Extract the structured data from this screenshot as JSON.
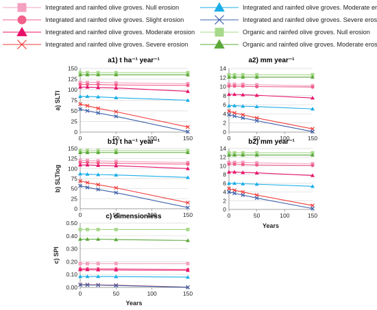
{
  "legend": [
    {
      "key": "int_null",
      "label": "Integrated and rainfed olive groves. Null erosion",
      "color": "#f4a0c0",
      "marker": "square"
    },
    {
      "key": "int_mod",
      "label": "Integrated and rainfed olive groves. Moderate erosion",
      "color": "#19aee8",
      "marker": "triangle"
    },
    {
      "key": "int_slight",
      "label": "Integrated and rainfed olive groves. Slight erosion",
      "color": "#f0608a",
      "marker": "circle"
    },
    {
      "key": "int_sev_blue",
      "label": "Integrated and rainfed olive groves. Severe erosion",
      "color": "#3a5fa8",
      "marker": "x"
    },
    {
      "key": "int_moderate",
      "label": "Integrated and rainfed olive groves. Moderate erosion",
      "color": "#e8106a",
      "marker": "triangle"
    },
    {
      "key": "org_null",
      "label": "Organic and rainfed olive groves. Null erosion",
      "color": "#a6d98a",
      "marker": "square"
    },
    {
      "key": "int_severe",
      "label": "Integrated and rainfed olive groves. Severe erosion",
      "color": "#f03a3a",
      "marker": "x"
    },
    {
      "key": "org_mod",
      "label": "Organic and rainfed olive groves. Moderate erosion",
      "color": "#5aa838",
      "marker": "triangle"
    }
  ],
  "chart_data": [
    {
      "id": "a1",
      "type": "line",
      "title": "a1) t ha⁻¹ year⁻¹",
      "xlabel": "",
      "ylabel": "a) SLTI",
      "x": [
        0,
        10,
        25,
        50,
        150
      ],
      "xticks": [
        0,
        50,
        100,
        150
      ],
      "xlim": [
        0,
        150
      ],
      "ylim": [
        0,
        150
      ],
      "yticks": [
        0,
        25,
        50,
        75,
        100,
        125,
        150
      ],
      "ydecimals": 0,
      "series": [
        {
          "key": "org_null",
          "values": [
            140,
            140,
            140,
            140,
            140
          ]
        },
        {
          "key": "org_mod",
          "values": [
            135,
            135,
            135,
            135,
            135
          ]
        },
        {
          "key": "int_null",
          "values": [
            117,
            117,
            117,
            116,
            114
          ]
        },
        {
          "key": "int_slight",
          "values": [
            112,
            112,
            112,
            111,
            110
          ]
        },
        {
          "key": "int_moderate",
          "values": [
            106,
            106,
            105,
            104,
            96
          ]
        },
        {
          "key": "int_mod",
          "values": [
            84,
            84,
            83,
            81,
            75
          ]
        },
        {
          "key": "int_severe",
          "values": [
            66,
            62,
            56,
            48,
            12
          ]
        },
        {
          "key": "int_sev_blue",
          "values": [
            54,
            50,
            45,
            37,
            1
          ]
        }
      ]
    },
    {
      "id": "a2",
      "type": "line",
      "title": "a2) mm year⁻¹",
      "xlabel": "",
      "ylabel": "",
      "x": [
        0,
        10,
        25,
        50,
        150
      ],
      "xticks": [
        0,
        50,
        100,
        150
      ],
      "xlim": [
        0,
        150
      ],
      "ylim": [
        0,
        14
      ],
      "yticks": [
        0,
        2,
        4,
        6,
        8,
        10,
        12,
        14
      ],
      "ydecimals": 0,
      "series": [
        {
          "key": "org_null",
          "values": [
            12.6,
            12.6,
            12.6,
            12.6,
            12.6
          ]
        },
        {
          "key": "org_mod",
          "values": [
            12.1,
            12.1,
            12.1,
            12.1,
            12.1
          ]
        },
        {
          "key": "int_null",
          "values": [
            10.5,
            10.5,
            10.5,
            10.4,
            10.2
          ]
        },
        {
          "key": "int_slight",
          "values": [
            10.1,
            10.1,
            10.1,
            10.0,
            9.9
          ]
        },
        {
          "key": "int_moderate",
          "values": [
            8.3,
            8.3,
            8.2,
            8.1,
            7.5
          ]
        },
        {
          "key": "int_mod",
          "values": [
            5.8,
            5.8,
            5.7,
            5.6,
            5.1
          ]
        },
        {
          "key": "int_severe",
          "values": [
            4.6,
            4.2,
            3.8,
            3.1,
            0.7
          ]
        },
        {
          "key": "int_sev_blue",
          "values": [
            3.8,
            3.5,
            3.1,
            2.5,
            0.1
          ]
        }
      ]
    },
    {
      "id": "b1",
      "type": "line",
      "title": "b1) t ha⁻¹ year⁻¹",
      "xlabel": "",
      "ylabel": "b) SLTlog",
      "x": [
        0,
        10,
        25,
        50,
        150
      ],
      "xticks": [
        0,
        50,
        100,
        150
      ],
      "xlim": [
        0,
        150
      ],
      "ylim": [
        0,
        150
      ],
      "yticks": [
        0,
        25,
        50,
        75,
        100,
        125,
        150
      ],
      "ydecimals": 0,
      "series": [
        {
          "key": "org_null",
          "values": [
            145,
            145,
            145,
            145,
            145
          ]
        },
        {
          "key": "org_mod",
          "values": [
            140,
            140,
            140,
            140,
            140
          ]
        },
        {
          "key": "int_null",
          "values": [
            120,
            120,
            119,
            118,
            115
          ]
        },
        {
          "key": "int_slight",
          "values": [
            115,
            115,
            114,
            113,
            111
          ]
        },
        {
          "key": "int_moderate",
          "values": [
            109,
            109,
            108,
            107,
            100
          ]
        },
        {
          "key": "int_mod",
          "values": [
            87,
            86,
            85,
            84,
            78
          ]
        },
        {
          "key": "int_severe",
          "values": [
            69,
            65,
            60,
            52,
            15
          ]
        },
        {
          "key": "int_sev_blue",
          "values": [
            57,
            53,
            48,
            40,
            3
          ]
        }
      ]
    },
    {
      "id": "b2",
      "type": "line",
      "title": "b2) mm year⁻¹",
      "xlabel": "Years",
      "ylabel": "",
      "x": [
        0,
        10,
        25,
        50,
        150
      ],
      "xticks": [
        0,
        50,
        100,
        150
      ],
      "xlim": [
        0,
        150
      ],
      "ylim": [
        0,
        14
      ],
      "yticks": [
        0,
        2,
        4,
        6,
        8,
        10,
        12,
        14
      ],
      "ydecimals": 0,
      "series": [
        {
          "key": "org_null",
          "values": [
            13.0,
            13.0,
            13.0,
            13.0,
            13.0
          ]
        },
        {
          "key": "org_mod",
          "values": [
            12.5,
            12.5,
            12.5,
            12.5,
            12.5
          ]
        },
        {
          "key": "int_null",
          "values": [
            10.8,
            10.8,
            10.8,
            10.7,
            10.5
          ]
        },
        {
          "key": "int_slight",
          "values": [
            10.4,
            10.4,
            10.3,
            10.2,
            10.1
          ]
        },
        {
          "key": "int_moderate",
          "values": [
            8.6,
            8.6,
            8.5,
            8.4,
            7.8
          ]
        },
        {
          "key": "int_mod",
          "values": [
            6.0,
            6.0,
            5.9,
            5.8,
            5.3
          ]
        },
        {
          "key": "int_severe",
          "values": [
            4.8,
            4.4,
            4.0,
            3.3,
            0.9
          ]
        },
        {
          "key": "int_sev_blue",
          "values": [
            4.0,
            3.7,
            3.3,
            2.6,
            0.2
          ]
        }
      ]
    },
    {
      "id": "c",
      "type": "line",
      "title": "c) dimensionless",
      "xlabel": "Years",
      "ylabel": "c) SPI",
      "x": [
        0,
        10,
        25,
        50,
        150
      ],
      "xticks": [
        0,
        50,
        100,
        150
      ],
      "xlim": [
        0,
        150
      ],
      "ylim": [
        0,
        0.5
      ],
      "yticks": [
        0,
        0.1,
        0.2,
        0.3,
        0.4,
        0.5
      ],
      "ydecimals": 2,
      "series": [
        {
          "key": "org_null",
          "values": [
            0.45,
            0.45,
            0.45,
            0.45,
            0.45
          ]
        },
        {
          "key": "org_mod",
          "values": [
            0.375,
            0.375,
            0.375,
            0.372,
            0.365
          ]
        },
        {
          "key": "int_null",
          "values": [
            0.185,
            0.185,
            0.185,
            0.185,
            0.185
          ]
        },
        {
          "key": "int_slight",
          "values": [
            0.145,
            0.145,
            0.145,
            0.145,
            0.14
          ]
        },
        {
          "key": "int_moderate",
          "values": [
            0.138,
            0.138,
            0.137,
            0.136,
            0.133
          ]
        },
        {
          "key": "int_mod",
          "values": [
            0.085,
            0.085,
            0.085,
            0.084,
            0.08
          ]
        },
        {
          "key": "int_severe",
          "values": [
            0.022,
            0.021,
            0.02,
            0.017,
            0.002
          ]
        },
        {
          "key": "int_sev_blue",
          "values": [
            0.02,
            0.019,
            0.018,
            0.015,
            0.001
          ]
        }
      ]
    }
  ]
}
